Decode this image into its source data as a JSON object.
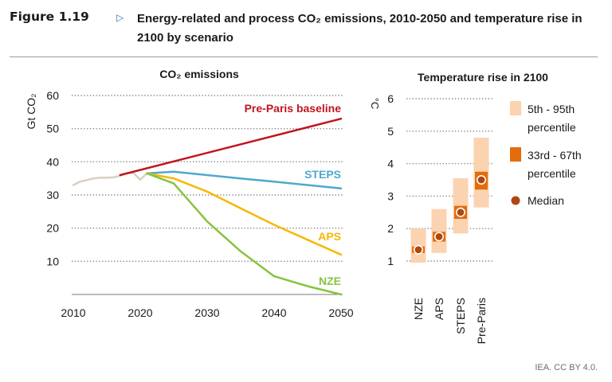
{
  "header": {
    "figure_number": "Figure 1.19",
    "title": "Energy-related and process CO₂ emissions, 2010-2050 and temperature rise in 2100 by scenario"
  },
  "credit": "IEA. CC BY 4.0.",
  "colors": {
    "history": "#d9d0c0",
    "pre_paris": "#c0161f",
    "steps": "#4fa8cc",
    "aps": "#f5b800",
    "nze": "#86c440",
    "range_90": "#fbd3b0",
    "range_33_67": "#e46c0a",
    "median": "#b0470f",
    "title_arrow": "#2d6fb5"
  },
  "chart_data": [
    {
      "type": "line",
      "title": "CO₂ emissions",
      "ylabel": "Gt CO₂",
      "xlim": [
        2010,
        2050
      ],
      "ylim": [
        0,
        60
      ],
      "x_ticks": [
        "2010",
        "2020",
        "2030",
        "2040",
        "2050"
      ],
      "y_ticks": [
        "10",
        "20",
        "30",
        "40",
        "50",
        "60"
      ],
      "grid": "horizontal dotted",
      "series": [
        {
          "name": "",
          "role": "history",
          "x": [
            2010,
            2011,
            2012,
            2013,
            2014,
            2015,
            2016,
            2017,
            2018,
            2019,
            2020,
            2021
          ],
          "y": [
            33.0,
            34.0,
            34.5,
            35.0,
            35.2,
            35.2,
            35.3,
            35.8,
            36.6,
            36.6,
            34.6,
            36.5
          ]
        },
        {
          "name": "Pre-Paris baseline",
          "x": [
            2017,
            2050
          ],
          "y": [
            36.0,
            53.0
          ]
        },
        {
          "name": "STEPS",
          "x": [
            2021,
            2025,
            2030,
            2035,
            2040,
            2045,
            2050
          ],
          "y": [
            36.5,
            37.0,
            36.0,
            35.0,
            34.0,
            33.0,
            32.0
          ]
        },
        {
          "name": "APS",
          "x": [
            2021,
            2025,
            2030,
            2035,
            2040,
            2045,
            2050
          ],
          "y": [
            36.5,
            35.0,
            31.0,
            26.0,
            21.0,
            16.5,
            12.0
          ]
        },
        {
          "name": "NZE",
          "x": [
            2021,
            2025,
            2030,
            2035,
            2040,
            2045,
            2050
          ],
          "y": [
            36.5,
            33.5,
            22.0,
            13.0,
            5.5,
            2.5,
            0.0
          ]
        }
      ]
    },
    {
      "type": "range",
      "title": "Temperature rise in 2100",
      "ylabel": "°C",
      "ylim": [
        1,
        6
      ],
      "y_ticks": [
        "1",
        "2",
        "3",
        "4",
        "5",
        "6"
      ],
      "grid": "horizontal dotted",
      "categories": [
        "NZE",
        "APS",
        "STEPS",
        "Pre-Paris"
      ],
      "p5": [
        0.95,
        1.25,
        1.85,
        2.65
      ],
      "p95": [
        2.0,
        2.6,
        3.55,
        4.8
      ],
      "p33": [
        1.25,
        1.6,
        2.3,
        3.2
      ],
      "p67": [
        1.45,
        1.9,
        2.7,
        3.75
      ],
      "median": [
        1.35,
        1.75,
        2.5,
        3.5
      ],
      "legend": [
        "5th - 95th percentile",
        "33rd - 67th percentile",
        "Median"
      ]
    }
  ]
}
